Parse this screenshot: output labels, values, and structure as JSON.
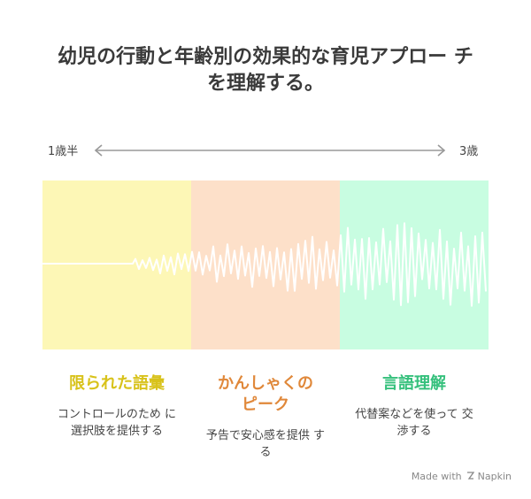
{
  "title": {
    "line1": "幼児の行動と年齢別の効果的な育児アプロー チ",
    "line2": "を理解する。"
  },
  "axis": {
    "start_label": "1歳半",
    "end_label": "3歳"
  },
  "stages": [
    {
      "title": "限られた語彙",
      "description": "コントロールのため に選択肢を提供する",
      "band_color": "#fdf7b6",
      "title_color": "#d8c21a"
    },
    {
      "title": "かんしゃくの ピーク",
      "description": "予告で安心感を提供 する",
      "band_color": "#fde0c9",
      "title_color": "#e0883a"
    },
    {
      "title": "言語理解",
      "description": "代替案などを使って 交渉する",
      "band_color": "#c8fde1",
      "title_color": "#35c07c"
    }
  ],
  "footer": {
    "made_with": "Made with",
    "brand": "Napkin"
  }
}
